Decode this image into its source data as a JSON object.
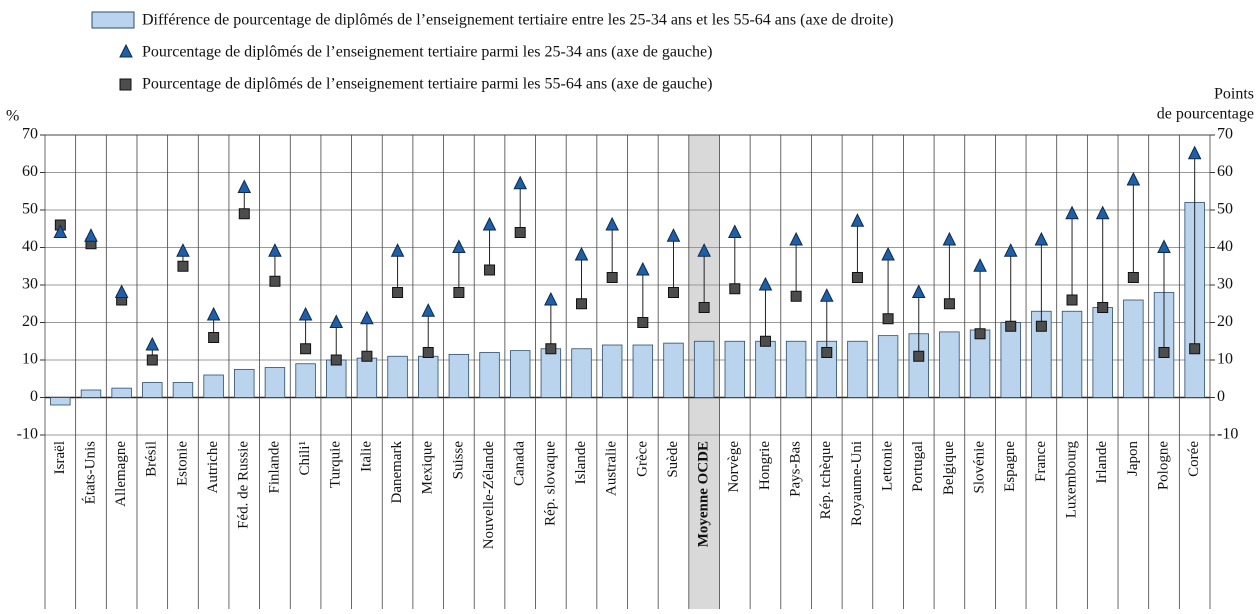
{
  "chart_data": {
    "type": "bar",
    "legend": [
      "Différence de pourcentage de diplômés de l’enseignement tertiaire entre les 25-34 ans et les 55-64 ans (axe de droite)",
      "Pourcentage de diplômés de l’enseignement tertiaire parmi les 25-34 ans (axe de gauche)",
      "Pourcentage de diplômés de l’enseignement tertiaire parmi les 55-64 ans (axe de gauche)"
    ],
    "ylabel": "%",
    "y2label": [
      "Points",
      "de pourcentage"
    ],
    "categories": [
      "Israël",
      "États-Unis",
      "Allemagne",
      "Brésil",
      "Estonie",
      "Autriche",
      "Féd. de Russie",
      "Finlande",
      "Chili¹",
      "Turquie",
      "Italie",
      "Danemark",
      "Mexique",
      "Suisse",
      "Nouvelle-Zélande",
      "Canada",
      "Rép. slovaque",
      "Islande",
      "Australie",
      "Grèce",
      "Suède",
      "Moyenne OCDE",
      "Norvège",
      "Hongrie",
      "Pays-Bas",
      "Rép. tchèque",
      "Royaume-Uni",
      "Lettonie",
      "Portugal",
      "Belgique",
      "Slovénie",
      "Espagne",
      "France",
      "Luxembourg",
      "Irlande",
      "Japon",
      "Pologne",
      "Corée"
    ],
    "highlight": "Moyenne OCDE",
    "series": [
      {
        "kind": "bar",
        "axis": "y2",
        "color": "#b9d4ec",
        "values": [
          -2,
          2,
          2.5,
          4,
          4,
          6,
          7.5,
          8,
          9,
          10,
          10.5,
          11,
          11,
          11.5,
          12,
          12.5,
          13,
          13,
          14,
          14,
          14.5,
          15,
          15,
          15,
          15,
          15,
          15,
          16.5,
          17,
          17.5,
          18,
          20,
          23,
          23,
          24,
          26,
          28,
          52
        ]
      },
      {
        "kind": "triangle",
        "color": "#1f5fa8",
        "values": [
          44,
          43,
          28,
          14,
          39,
          22,
          56,
          39,
          22,
          20,
          21,
          39,
          23,
          40,
          46,
          57,
          26,
          38,
          46,
          34,
          43,
          39,
          44,
          30,
          42,
          27,
          47,
          38,
          28,
          42,
          35,
          39,
          42,
          49,
          49,
          58,
          40,
          65
        ]
      },
      {
        "kind": "square",
        "color": "#4d4d4d",
        "values": [
          46,
          41,
          26,
          10,
          35,
          16,
          49,
          31,
          13,
          10,
          11,
          28,
          12,
          28,
          34,
          44,
          13,
          25,
          32,
          20,
          28,
          24,
          29,
          15,
          27,
          12,
          32,
          21,
          11,
          25,
          17,
          19,
          19,
          26,
          24,
          32,
          12,
          13
        ]
      }
    ],
    "ylim": [
      -10,
      70
    ],
    "yticks": [
      -10,
      0,
      10,
      20,
      30,
      40,
      50,
      60,
      70
    ],
    "y2lim": [
      -10,
      70
    ],
    "y2ticks": [
      -10,
      0,
      10,
      20,
      30,
      40,
      50,
      60,
      70
    ],
    "grid": true
  }
}
